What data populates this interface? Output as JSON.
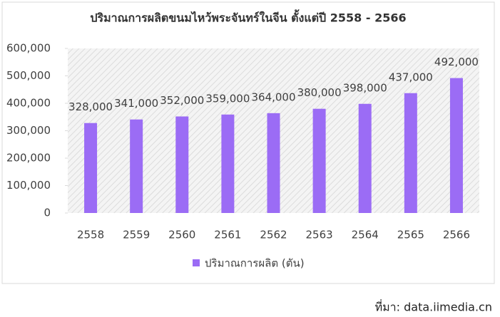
{
  "chart_data": {
    "type": "bar",
    "title": "ปริมาณการผลิตขนมไหว้พระจันทร์ในจีน ตั้งแต่ปี 2558 - 2566",
    "categories": [
      "2558",
      "2559",
      "2560",
      "2561",
      "2562",
      "2563",
      "2564",
      "2565",
      "2566"
    ],
    "series": [
      {
        "name": "ปริมาณการผลิต (ตัน)",
        "color": "#9b6cf5",
        "values": [
          328000,
          341000,
          352000,
          359000,
          364000,
          380000,
          398000,
          437000,
          492000
        ],
        "value_labels": [
          "328,000",
          "341,000",
          "352,000",
          "359,000",
          "364,000",
          "380,000",
          "398,000",
          "437,000",
          "492,000"
        ]
      }
    ],
    "ylim": [
      0,
      600000
    ],
    "yticks": [
      0,
      {
        "value": 100000,
        "label": "100,000"
      },
      {
        "value": 200000,
        "label": "200,000"
      },
      {
        "value": 300000,
        "label": "300,000"
      },
      {
        "value": 400000,
        "label": "400,000"
      },
      {
        "value": 500000,
        "label": "500,000"
      },
      {
        "value": 600000,
        "label": "600,000"
      }
    ],
    "legend": "bottom",
    "source": "ที่มา: data.iimedia.cn"
  }
}
